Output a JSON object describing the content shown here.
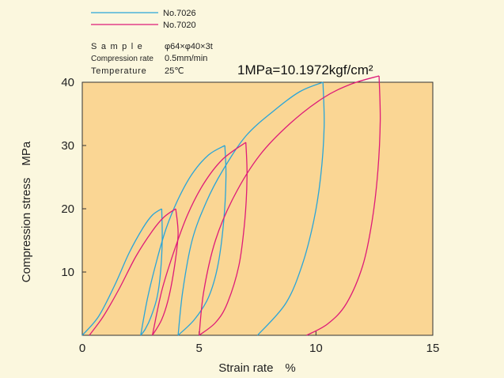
{
  "chart_data": {
    "type": "line",
    "title": "",
    "xlabel": "Strain rate　%",
    "ylabel": "Compression stress　MPa",
    "xlim": [
      0,
      15
    ],
    "ylim": [
      0,
      40
    ],
    "xticks": [
      0,
      5,
      10,
      15
    ],
    "yticks": [
      10,
      20,
      30,
      40
    ],
    "xtick_labels": [
      "0",
      "5",
      "10",
      "15"
    ],
    "ytick_labels": [
      "10",
      "20",
      "30",
      "40"
    ],
    "grid": false,
    "legend_position": "top-left",
    "legend": [
      {
        "name": "No.7026",
        "color": "#2aa5d8"
      },
      {
        "name": "No.7020",
        "color": "#de1b78"
      }
    ],
    "conditions": [
      {
        "label": "Sample",
        "value": "φ64×φ40×3t"
      },
      {
        "label": "Compression rate",
        "value": "0.5mm/min"
      },
      {
        "label": "Temperature",
        "value": "25℃"
      }
    ],
    "annotation": "1MPa=10.1972kgf/cm²",
    "series": [
      {
        "name": "No.7026",
        "color": "#2aa5d8",
        "cycles": [
          {
            "peak": [
              3.4,
              20
            ],
            "loading": [
              [
                0,
                0
              ],
              [
                0.7,
                3
              ],
              [
                1.4,
                8
              ],
              [
                2.0,
                13
              ],
              [
                2.6,
                17
              ],
              [
                3.0,
                19
              ],
              [
                3.4,
                20
              ]
            ],
            "unloading": [
              [
                3.4,
                20
              ],
              [
                3.42,
                15
              ],
              [
                3.35,
                10
              ],
              [
                3.2,
                6
              ],
              [
                2.95,
                3
              ],
              [
                2.7,
                1
              ],
              [
                2.5,
                0
              ]
            ]
          },
          {
            "peak": [
              6.1,
              30
            ],
            "loading": [
              [
                2.5,
                0
              ],
              [
                2.8,
                6
              ],
              [
                3.2,
                12
              ],
              [
                3.6,
                17
              ],
              [
                4.1,
                21.5
              ],
              [
                4.7,
                25.5
              ],
              [
                5.4,
                28.5
              ],
              [
                6.1,
                30
              ]
            ],
            "unloading": [
              [
                6.1,
                30
              ],
              [
                6.15,
                25
              ],
              [
                6.05,
                18
              ],
              [
                5.8,
                11
              ],
              [
                5.4,
                6
              ],
              [
                4.8,
                2.5
              ],
              [
                4.1,
                0
              ]
            ]
          },
          {
            "peak": [
              10.3,
              40
            ],
            "loading": [
              [
                4.1,
                0
              ],
              [
                4.3,
                7
              ],
              [
                4.7,
                15
              ],
              [
                5.3,
                21
              ],
              [
                6.0,
                26
              ],
              [
                7.0,
                31.5
              ],
              [
                8.2,
                35.5
              ],
              [
                9.3,
                38.5
              ],
              [
                10.3,
                40
              ]
            ],
            "unloading": [
              [
                10.3,
                40
              ],
              [
                10.35,
                33
              ],
              [
                10.2,
                25
              ],
              [
                9.9,
                18
              ],
              [
                9.4,
                11
              ],
              [
                8.7,
                5
              ],
              [
                7.5,
                0
              ]
            ]
          }
        ]
      },
      {
        "name": "No.7020",
        "color": "#de1b78",
        "cycles": [
          {
            "peak": [
              4.0,
              20
            ],
            "loading": [
              [
                0.3,
                0
              ],
              [
                0.9,
                3
              ],
              [
                1.6,
                7.5
              ],
              [
                2.3,
                12.5
              ],
              [
                3.0,
                16.5
              ],
              [
                3.5,
                18.7
              ],
              [
                4.0,
                20
              ]
            ],
            "unloading": [
              [
                4.0,
                20
              ],
              [
                4.1,
                16
              ],
              [
                3.95,
                11
              ],
              [
                3.7,
                6
              ],
              [
                3.4,
                2.5
              ],
              [
                3.0,
                0
              ]
            ]
          },
          {
            "peak": [
              7.0,
              30.5
            ],
            "loading": [
              [
                3.0,
                0
              ],
              [
                3.4,
                7
              ],
              [
                3.9,
                13
              ],
              [
                4.5,
                19
              ],
              [
                5.2,
                24
              ],
              [
                6.0,
                27.8
              ],
              [
                7.0,
                30.5
              ]
            ],
            "unloading": [
              [
                7.0,
                30.5
              ],
              [
                7.05,
                25
              ],
              [
                6.95,
                18
              ],
              [
                6.7,
                11
              ],
              [
                6.2,
                5
              ],
              [
                5.7,
                2
              ],
              [
                5.0,
                0
              ]
            ]
          },
          {
            "peak": [
              12.7,
              41
            ],
            "loading": [
              [
                5.0,
                0
              ],
              [
                5.2,
                7
              ],
              [
                5.7,
                15
              ],
              [
                6.5,
                22
              ],
              [
                7.6,
                28.5
              ],
              [
                8.9,
                33.5
              ],
              [
                10.3,
                37.5
              ],
              [
                11.5,
                39.7
              ],
              [
                12.7,
                41
              ]
            ],
            "unloading": [
              [
                12.7,
                41
              ],
              [
                12.75,
                34
              ],
              [
                12.65,
                26
              ],
              [
                12.4,
                18
              ],
              [
                12.0,
                11
              ],
              [
                11.3,
                5
              ],
              [
                10.5,
                1.8
              ],
              [
                9.6,
                0
              ]
            ]
          }
        ]
      }
    ]
  }
}
